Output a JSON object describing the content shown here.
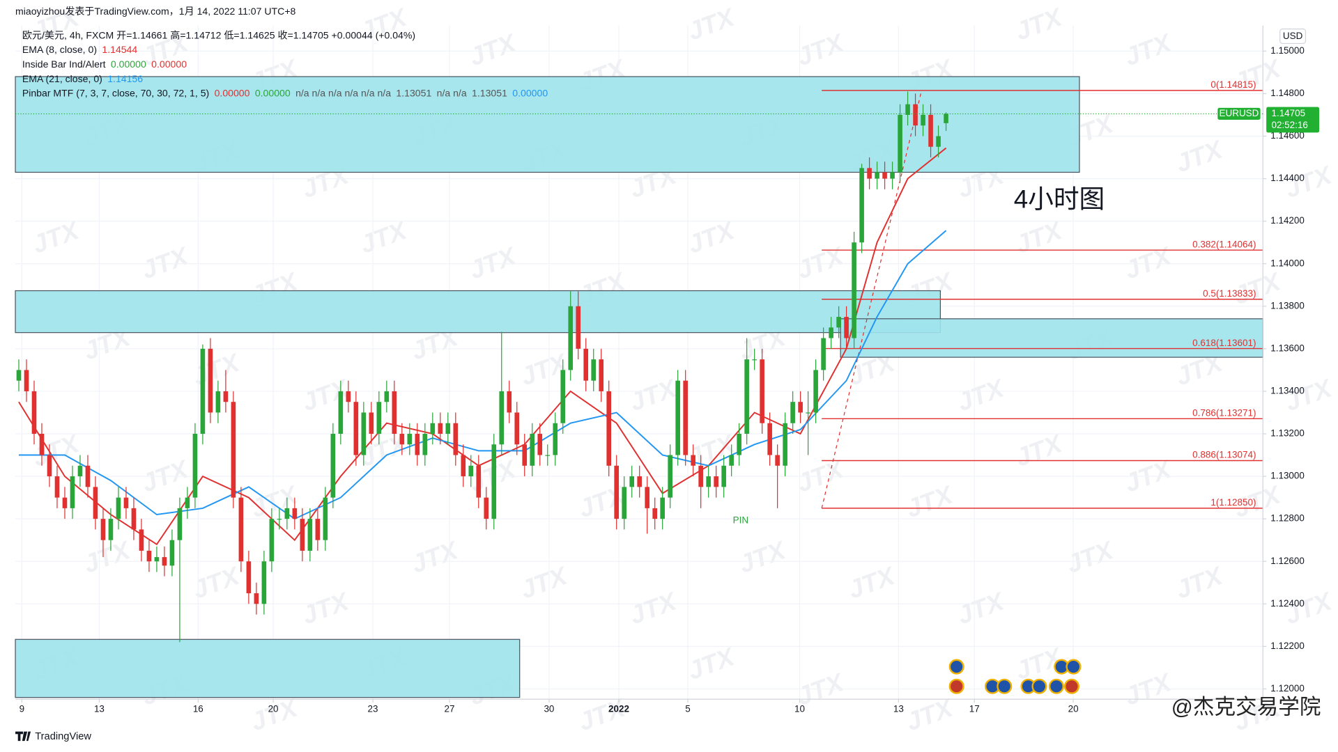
{
  "header": {
    "published": "miaoyizhou发表于TradingView.com，1月 14, 2022 11:07 UTC+8",
    "brand": "TradingView"
  },
  "watermark": "JTX",
  "annotation": "4小时图",
  "footer_watermark": "@杰克交易学院",
  "chart_data": {
    "type": "candlestick",
    "legend": [
      [
        {
          "text": "欧元/美元, 4h, FXCM  开=1.14661  高=1.14712  低=1.14625  收=1.14705  +0.00044 (+0.04%)",
          "color": "#131722"
        }
      ],
      [
        {
          "text": "EMA (8, close, 0)",
          "color": "#131722"
        },
        {
          "text": "1.14544",
          "color": "#e0302f"
        }
      ],
      [
        {
          "text": "Inside Bar Ind/Alert",
          "color": "#131722"
        },
        {
          "text": "0.00000",
          "color": "#2aa53a"
        },
        {
          "text": "0.00000",
          "color": "#e0302f"
        }
      ],
      [
        {
          "text": "EMA (21, close, 0)",
          "color": "#131722"
        },
        {
          "text": "1.14156",
          "color": "#2196f3"
        }
      ],
      [
        {
          "text": "Pinbar MTF (7, 3, 7, close, 70, 30, 72, 1, 5)",
          "color": "#131722"
        },
        {
          "text": "0.00000",
          "color": "#e0302f"
        },
        {
          "text": "0.00000",
          "color": "#2aa53a"
        },
        {
          "text": "n/a  n/a  n/a  n/a  n/a  n/a",
          "color": "#555"
        },
        {
          "text": "1.13051",
          "color": "#555"
        },
        {
          "text": "n/a  n/a",
          "color": "#555"
        },
        {
          "text": "1.13051",
          "color": "#555"
        },
        {
          "text": "0.00000",
          "color": "#2196f3"
        }
      ]
    ],
    "up_color": "#2aa53a",
    "down_color": "#e0302f",
    "xlim": [
      -0.45,
      162.35
    ],
    "ylim": [
      1.11952,
      1.1512
    ],
    "xticks": [
      {
        "value": 0.4,
        "label": "9"
      },
      {
        "value": 10.5,
        "label": "13"
      },
      {
        "value": 23.4,
        "label": "16"
      },
      {
        "value": 33.2,
        "label": "20"
      },
      {
        "value": 46.2,
        "label": "23"
      },
      {
        "value": 56.2,
        "label": "27"
      },
      {
        "value": 69.2,
        "label": "30"
      },
      {
        "value": 78.3,
        "label": "2022"
      },
      {
        "value": 87.3,
        "label": "5"
      },
      {
        "value": 101.9,
        "label": "10"
      },
      {
        "value": 114.8,
        "label": "13"
      },
      {
        "value": 124.7,
        "label": "17"
      },
      {
        "value": 137.6,
        "label": "20"
      }
    ],
    "yticks": [
      {
        "value": 1.15,
        "label": "1.15000"
      },
      {
        "value": 1.148,
        "label": "1.14800"
      },
      {
        "value": 1.146,
        "label": "1.14600"
      },
      {
        "value": 1.144,
        "label": "1.14400"
      },
      {
        "value": 1.142,
        "label": "1.14200"
      },
      {
        "value": 1.14,
        "label": "1.14000"
      },
      {
        "value": 1.138,
        "label": "1.13800"
      },
      {
        "value": 1.136,
        "label": "1.13600"
      },
      {
        "value": 1.134,
        "label": "1.13400"
      },
      {
        "value": 1.132,
        "label": "1.13200"
      },
      {
        "value": 1.13,
        "label": "1.13000"
      },
      {
        "value": 1.128,
        "label": "1.12800"
      },
      {
        "value": 1.126,
        "label": "1.12600"
      },
      {
        "value": 1.124,
        "label": "1.12400"
      },
      {
        "value": 1.122,
        "label": "1.12200"
      },
      {
        "value": 1.12,
        "label": "1.12000"
      }
    ],
    "currency": "USD",
    "open": [
      1.1345,
      1.135,
      1.134,
      1.132,
      1.131,
      1.13,
      1.129,
      1.1285,
      1.13,
      1.1305,
      1.1295,
      1.128,
      1.127,
      1.128,
      1.129,
      1.1285,
      1.1275,
      1.1265,
      1.126,
      1.1262,
      1.1258,
      1.127,
      1.1285,
      1.129,
      1.132,
      1.136,
      1.133,
      1.134,
      1.1335,
      1.129,
      1.126,
      1.1245,
      1.124,
      1.126,
      1.128,
      1.128,
      1.1285,
      1.128,
      1.1265,
      1.128,
      1.127,
      1.129,
      1.132,
      1.134,
      1.1335,
      1.131,
      1.133,
      1.132,
      1.1335,
      1.134,
      1.132,
      1.1315,
      1.132,
      1.131,
      1.132,
      1.1325,
      1.132,
      1.1325,
      1.131,
      1.13,
      1.1305,
      1.129,
      1.128,
      1.1315,
      1.134,
      1.133,
      1.1315,
      1.1305,
      1.132,
      1.131,
      1.131,
      1.1325,
      1.135,
      1.138,
      1.136,
      1.1345,
      1.1355,
      1.134,
      1.1305,
      1.128,
      1.1295,
      1.13,
      1.1295,
      1.1285,
      1.128,
      1.129,
      1.131,
      1.1345,
      1.131,
      1.1305,
      1.1295,
      1.13,
      1.1295,
      1.1305,
      1.131,
      1.132,
      1.1355,
      1.1355,
      1.1325,
      1.131,
      1.1305,
      1.1325,
      1.1335,
      1.133,
      1.133,
      1.135,
      1.1365,
      1.137,
      1.1375,
      1.1365,
      1.141,
      1.1445,
      1.144,
      1.1443,
      1.144,
      1.1443,
      1.147,
      1.1475,
      1.1465,
      1.147,
      1.1455,
      1.14661
    ],
    "high": [
      1.1355,
      1.1355,
      1.1345,
      1.1325,
      1.1315,
      1.1305,
      1.1295,
      1.1305,
      1.131,
      1.131,
      1.13,
      1.1285,
      1.1285,
      1.1295,
      1.1295,
      1.129,
      1.128,
      1.127,
      1.1267,
      1.1267,
      1.1275,
      1.129,
      1.1295,
      1.1325,
      1.1362,
      1.1365,
      1.1345,
      1.135,
      1.134,
      1.1295,
      1.1265,
      1.125,
      1.1265,
      1.1285,
      1.1285,
      1.129,
      1.129,
      1.1285,
      1.1285,
      1.1285,
      1.1295,
      1.1325,
      1.1345,
      1.1345,
      1.134,
      1.1335,
      1.1335,
      1.134,
      1.1345,
      1.1345,
      1.1325,
      1.1325,
      1.1325,
      1.1325,
      1.133,
      1.133,
      1.133,
      1.133,
      1.1315,
      1.131,
      1.131,
      1.1295,
      1.132,
      1.1368,
      1.1345,
      1.1335,
      1.132,
      1.1325,
      1.1325,
      1.1315,
      1.133,
      1.1355,
      1.1387,
      1.1387,
      1.1365,
      1.136,
      1.136,
      1.1345,
      1.131,
      1.13,
      1.1305,
      1.1305,
      1.13,
      1.129,
      1.1295,
      1.1315,
      1.135,
      1.135,
      1.1315,
      1.131,
      1.1305,
      1.1305,
      1.131,
      1.1315,
      1.1325,
      1.1365,
      1.136,
      1.136,
      1.133,
      1.1315,
      1.133,
      1.134,
      1.134,
      1.134,
      1.1355,
      1.137,
      1.1375,
      1.138,
      1.138,
      1.1415,
      1.1447,
      1.145,
      1.1448,
      1.1448,
      1.1448,
      1.1475,
      1.1481,
      1.148,
      1.1475,
      1.1475,
      1.1465,
      1.14712
    ],
    "low": [
      1.134,
      1.1335,
      1.1315,
      1.1305,
      1.1295,
      1.1285,
      1.128,
      1.128,
      1.1295,
      1.129,
      1.1275,
      1.1262,
      1.1265,
      1.1275,
      1.128,
      1.127,
      1.126,
      1.1255,
      1.1255,
      1.1253,
      1.1253,
      1.1222,
      1.128,
      1.1285,
      1.1315,
      1.1325,
      1.1325,
      1.133,
      1.1285,
      1.1255,
      1.124,
      1.1235,
      1.1235,
      1.1255,
      1.1275,
      1.1275,
      1.1275,
      1.126,
      1.126,
      1.1265,
      1.1265,
      1.1285,
      1.1315,
      1.133,
      1.1305,
      1.1305,
      1.1315,
      1.1315,
      1.133,
      1.1315,
      1.131,
      1.131,
      1.1305,
      1.1305,
      1.1315,
      1.1315,
      1.1315,
      1.1305,
      1.1295,
      1.1295,
      1.1285,
      1.1275,
      1.1275,
      1.131,
      1.1325,
      1.131,
      1.13,
      1.13,
      1.1305,
      1.1305,
      1.1305,
      1.132,
      1.1345,
      1.1355,
      1.134,
      1.134,
      1.1335,
      1.13,
      1.1275,
      1.1275,
      1.129,
      1.129,
      1.1273,
      1.1275,
      1.1275,
      1.1285,
      1.1305,
      1.1305,
      1.13,
      1.1285,
      1.129,
      1.129,
      1.129,
      1.13,
      1.1305,
      1.1315,
      1.135,
      1.132,
      1.1305,
      1.1285,
      1.13,
      1.132,
      1.1325,
      1.131,
      1.1325,
      1.1345,
      1.136,
      1.1365,
      1.136,
      1.136,
      1.1405,
      1.1435,
      1.1435,
      1.1435,
      1.1435,
      1.1438,
      1.1465,
      1.146,
      1.146,
      1.145,
      1.145,
      1.14625
    ],
    "close": [
      1.135,
      1.134,
      1.132,
      1.131,
      1.13,
      1.129,
      1.1285,
      1.13,
      1.1305,
      1.1295,
      1.128,
      1.127,
      1.128,
      1.129,
      1.1285,
      1.1275,
      1.1265,
      1.126,
      1.1262,
      1.1258,
      1.127,
      1.1285,
      1.129,
      1.132,
      1.136,
      1.133,
      1.134,
      1.1335,
      1.129,
      1.126,
      1.1245,
      1.124,
      1.126,
      1.128,
      1.128,
      1.1285,
      1.128,
      1.1265,
      1.128,
      1.127,
      1.129,
      1.132,
      1.134,
      1.1335,
      1.131,
      1.133,
      1.132,
      1.1335,
      1.134,
      1.132,
      1.1315,
      1.132,
      1.131,
      1.132,
      1.1325,
      1.132,
      1.1325,
      1.131,
      1.13,
      1.1305,
      1.129,
      1.128,
      1.1315,
      1.134,
      1.133,
      1.1315,
      1.1305,
      1.132,
      1.131,
      1.131,
      1.1325,
      1.135,
      1.138,
      1.136,
      1.1345,
      1.1355,
      1.134,
      1.1305,
      1.128,
      1.1295,
      1.13,
      1.1295,
      1.1285,
      1.128,
      1.129,
      1.131,
      1.1345,
      1.131,
      1.1305,
      1.1295,
      1.13,
      1.1295,
      1.1305,
      1.131,
      1.132,
      1.1355,
      1.1355,
      1.1325,
      1.131,
      1.1305,
      1.1325,
      1.1335,
      1.133,
      1.133,
      1.135,
      1.1365,
      1.137,
      1.1375,
      1.1365,
      1.141,
      1.1445,
      1.144,
      1.1443,
      1.144,
      1.1443,
      1.147,
      1.1475,
      1.1465,
      1.147,
      1.1455,
      1.146,
      1.14705
    ],
    "ema": [
      {
        "color": "#e0302f",
        "x": [
          0,
          6,
          12,
          18,
          24,
          30,
          36,
          42,
          48,
          54,
          60,
          66,
          72,
          78,
          84,
          90,
          96,
          102,
          108,
          112,
          116,
          121
        ],
        "values": [
          1.1335,
          1.13,
          1.1282,
          1.1268,
          1.13,
          1.129,
          1.127,
          1.13,
          1.1325,
          1.132,
          1.1305,
          1.1315,
          1.134,
          1.1325,
          1.1292,
          1.1305,
          1.133,
          1.132,
          1.136,
          1.141,
          1.144,
          1.14544
        ]
      },
      {
        "color": "#2196f3",
        "x": [
          0,
          6,
          12,
          18,
          24,
          30,
          36,
          42,
          48,
          54,
          60,
          66,
          72,
          78,
          84,
          90,
          96,
          102,
          108,
          112,
          116,
          121
        ],
        "values": [
          1.131,
          1.131,
          1.1298,
          1.1282,
          1.1285,
          1.1295,
          1.128,
          1.129,
          1.131,
          1.1318,
          1.1312,
          1.1312,
          1.1325,
          1.133,
          1.131,
          1.1305,
          1.1315,
          1.1322,
          1.1345,
          1.1375,
          1.14,
          1.14156
        ]
      }
    ],
    "zones": [
      {
        "top": 1.1488,
        "bottom": 1.1443
      },
      {
        "top": 1.13873,
        "bottom": 1.13676
      },
      {
        "top": 1.13741,
        "bottom": 1.1356
      },
      {
        "top": 1.12233,
        "bottom": 1.1196
      }
    ],
    "fib_levels": [
      {
        "value": 1.14815,
        "label": "0(1.14815)"
      },
      {
        "value": 1.14064,
        "label": "0.382(1.14064)"
      },
      {
        "value": 1.13833,
        "label": "0.5(1.13833)"
      },
      {
        "value": 1.13601,
        "label": "0.618(1.13601)"
      },
      {
        "value": 1.13271,
        "label": "0.786(1.13271)"
      },
      {
        "value": 1.13074,
        "label": "0.886(1.13074)"
      },
      {
        "value": 1.1285,
        "label": "1(1.12850)"
      }
    ],
    "pin_label": "PIN",
    "last_price": {
      "symbol": "EURUSD",
      "value": 1.14705,
      "countdown": "02:52:16",
      "color": "#22b033"
    }
  }
}
